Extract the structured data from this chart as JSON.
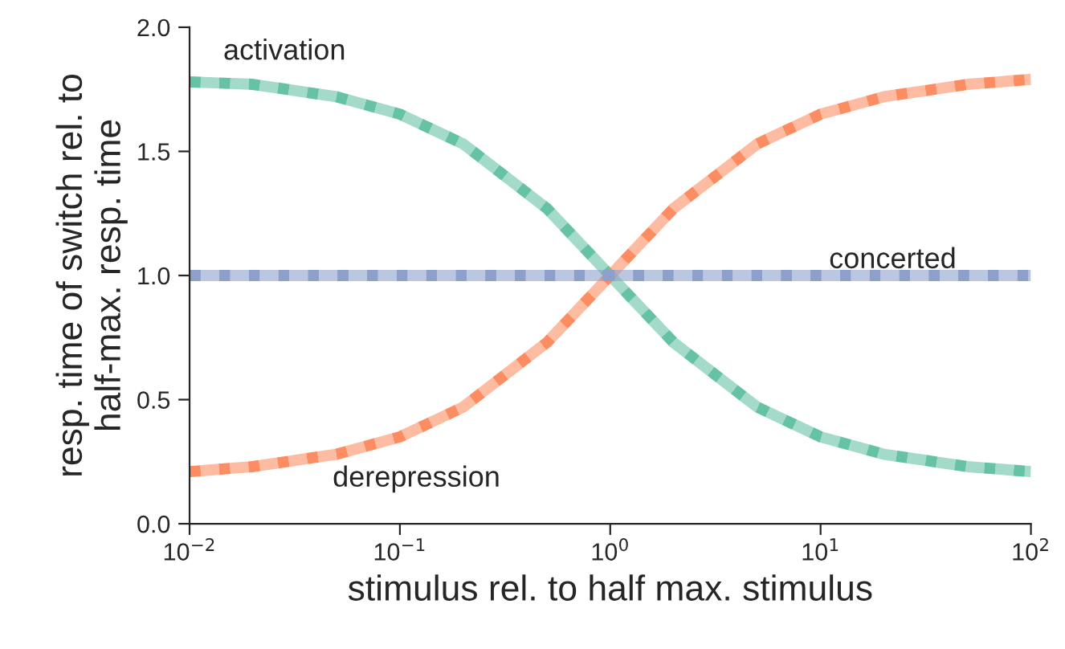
{
  "chart_data": {
    "type": "line",
    "xlabel": "stimulus rel. to half max. stimulus",
    "ylabel": "resp. time of switch rel. to\nhalf-max. resp. time",
    "log": "x",
    "xlim": [
      0.01,
      100
    ],
    "ylim": [
      0,
      2
    ],
    "xticks": [
      {
        "value": 0.01,
        "label": "10$^{−2}$"
      },
      {
        "value": 0.1,
        "label": "10$^{−1}$"
      },
      {
        "value": 1,
        "label": "10$^{0}$"
      },
      {
        "value": 10,
        "label": "10$^{1}$"
      },
      {
        "value": 100,
        "label": "10$^{2}$"
      }
    ],
    "yticks": [
      {
        "value": 0,
        "label": "0.0"
      },
      {
        "value": 0.5,
        "label": "0.5"
      },
      {
        "value": 1,
        "label": "1.0"
      },
      {
        "value": 1.5,
        "label": "1.5"
      },
      {
        "value": 2,
        "label": "2.0"
      }
    ],
    "x": [
      0.01,
      0.02,
      0.05,
      0.1,
      0.2,
      0.5,
      1,
      2,
      5,
      10,
      20,
      50,
      100
    ],
    "grid": false,
    "legend": false,
    "line_style": "dotted",
    "marker": "none",
    "series": [
      {
        "name": "activation",
        "color": "#66c2a5",
        "values": [
          1.78,
          1.77,
          1.72,
          1.65,
          1.53,
          1.27,
          1.0,
          0.73,
          0.47,
          0.35,
          0.28,
          0.23,
          0.21
        ]
      },
      {
        "name": "derepression",
        "color": "#fc8d62",
        "values": [
          0.21,
          0.23,
          0.28,
          0.35,
          0.47,
          0.73,
          1.0,
          1.27,
          1.53,
          1.65,
          1.72,
          1.77,
          1.79
        ]
      },
      {
        "name": "concerted",
        "color": "#8da0cb",
        "values": [
          1,
          1,
          1,
          1,
          1,
          1,
          1,
          1,
          1,
          1,
          1,
          1,
          1
        ]
      }
    ]
  }
}
